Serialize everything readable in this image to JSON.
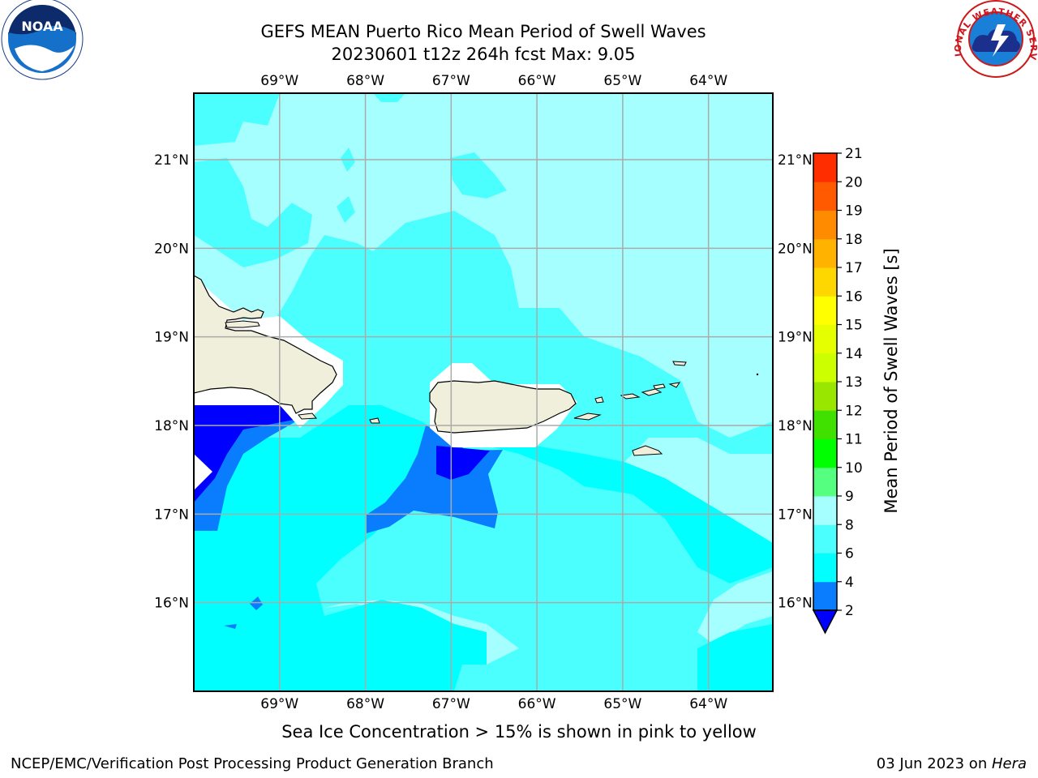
{
  "title": {
    "line1": "GEFS MEAN Puerto Rico Mean Period of Swell Waves",
    "line2": "20230601 t12z 264h fcst   Max: 9.05"
  },
  "footer_note": "Sea Ice Concentration > 15% is shown in pink to yellow",
  "credits": {
    "left": "NCEP/EMC/Verification Post Processing Product Generation Branch",
    "right_date": "03 Jun 2023 on ",
    "right_host": "Hera"
  },
  "logos": {
    "noaa": {
      "label": "NOAA",
      "icon": "noaa-logo"
    },
    "nws": {
      "label": "NATIONAL WEATHER SERVICE",
      "icon": "nws-logo"
    }
  },
  "map": {
    "lon_labels": [
      "69°W",
      "68°W",
      "67°W",
      "66°W",
      "65°W",
      "64°W"
    ],
    "lat_labels": [
      "21°N",
      "20°N",
      "19°N",
      "18°N",
      "17°N",
      "16°N"
    ],
    "lon_values": [
      -69,
      -68,
      -67,
      -66,
      -65,
      -64
    ],
    "lat_values": [
      21,
      20,
      19,
      18,
      17,
      16
    ],
    "lon_range": [
      -70,
      -63.25
    ],
    "lat_range": [
      15,
      21.75
    ]
  },
  "colorbar": {
    "title": "Mean Period of Swell Waves [s]",
    "levels": [
      "2",
      "4",
      "6",
      "8",
      "9",
      "10",
      "11",
      "12",
      "13",
      "14",
      "15",
      "16",
      "17",
      "18",
      "19",
      "20",
      "21"
    ],
    "colors": [
      "#0a7dff",
      "#00ffff",
      "#4cffff",
      "#a6ffff",
      "#55ff7f",
      "#00ff00",
      "#40e000",
      "#99e600",
      "#ccff00",
      "#e6ff00",
      "#ffff00",
      "#ffd700",
      "#ffb300",
      "#ff8c00",
      "#ff5a00",
      "#ff2d00"
    ],
    "extend_min_color": "#0000ff"
  },
  "fill_colors": {
    "c2_4": "#0a7dff",
    "c4_6": "#00ffff",
    "c6_8": "#4cffff",
    "c8_9": "#a6ffff",
    "below2": "#0000ff",
    "land": "#efefdc"
  }
}
